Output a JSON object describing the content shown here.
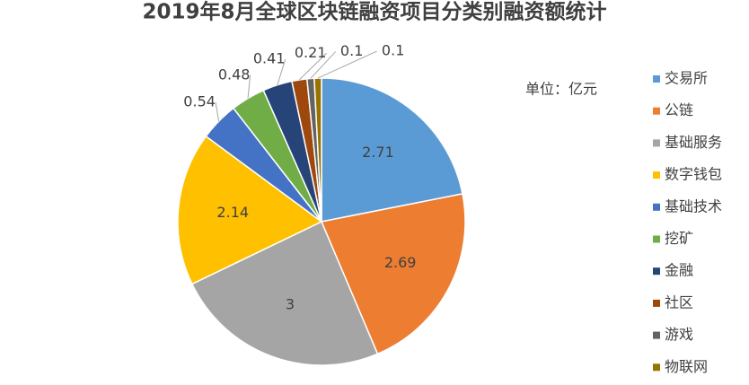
{
  "chart_data": {
    "type": "pie",
    "title": "2019年8月全球区块链融资项目分类别融资额统计",
    "subtitle": "单位：亿元",
    "categories": [
      "交易所",
      "公链",
      "基础服务",
      "数字钱包",
      "基础技术",
      "挖矿",
      "金融",
      "社区",
      "游戏",
      "物联网"
    ],
    "values": [
      2.71,
      2.69,
      3,
      2.14,
      0.54,
      0.48,
      0.41,
      0.21,
      0.1,
      0.1
    ],
    "colors": [
      "#5b9bd5",
      "#ed7d31",
      "#a5a5a5",
      "#ffc000",
      "#4472c4",
      "#70ad47",
      "#264478",
      "#9e480e",
      "#636363",
      "#997300"
    ],
    "legend": "right"
  }
}
